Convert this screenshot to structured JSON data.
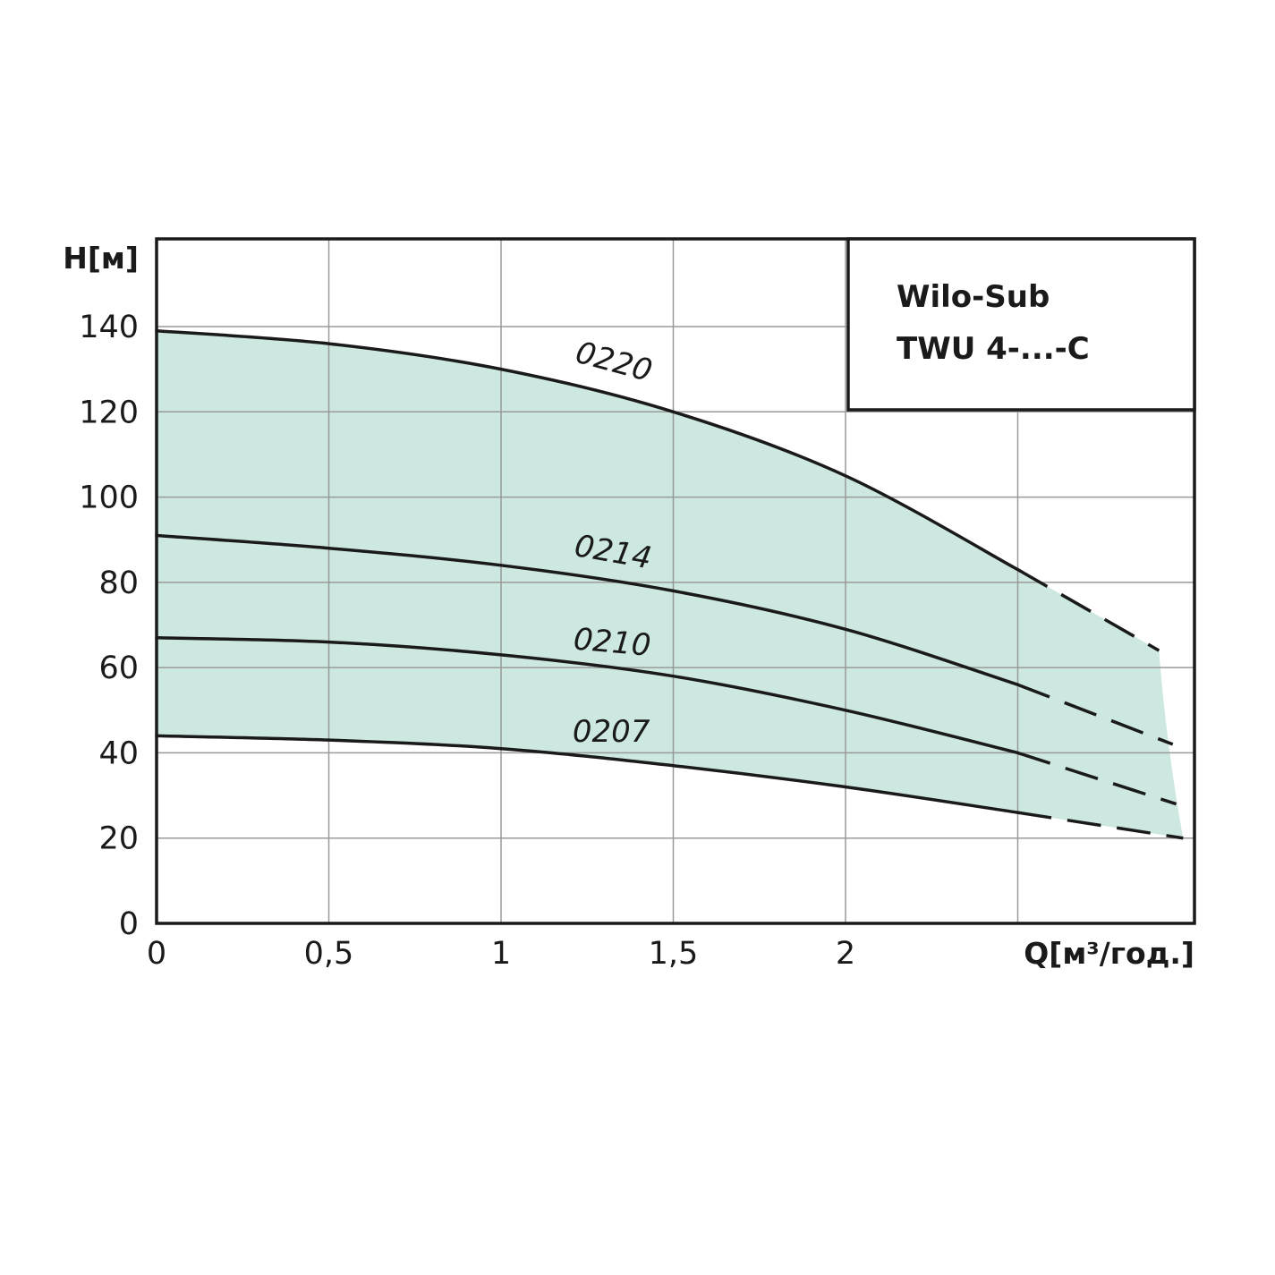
{
  "chart_data": {
    "type": "line",
    "xlabel": "Q[м³/год.]",
    "ylabel": "H[м]",
    "xlim": [
      0,
      3
    ],
    "ylim": [
      0,
      140
    ],
    "x_ticks": [
      0,
      0.5,
      1,
      1.5,
      2,
      2.5
    ],
    "x_tick_labels": [
      "0",
      "0,5",
      "1",
      "1,5",
      "2",
      ""
    ],
    "y_ticks": [
      0,
      20,
      40,
      60,
      80,
      100,
      120,
      140
    ],
    "y_tick_labels": [
      "0",
      "20",
      "40",
      "60",
      "80",
      "100",
      "120",
      "140"
    ],
    "grid": true,
    "fill_color": "#cde8e1",
    "line_color": "#1a1a1a",
    "legend_box": {
      "lines": [
        "Wilo-Sub",
        "TWU 4-...-C"
      ],
      "placement": "top-right"
    },
    "series": [
      {
        "name": "0220",
        "x": [
          0,
          0.5,
          1.0,
          1.5,
          2.0,
          2.5
        ],
        "y": [
          139,
          136,
          130,
          120,
          105,
          83
        ],
        "dashed_x": [
          2.5,
          2.91
        ],
        "dashed_y": [
          83,
          64
        ]
      },
      {
        "name": "0214",
        "x": [
          0,
          0.5,
          1.0,
          1.5,
          2.0,
          2.5
        ],
        "y": [
          91,
          88,
          84,
          78,
          69,
          56
        ],
        "dashed_x": [
          2.5,
          2.95
        ],
        "dashed_y": [
          56,
          42
        ]
      },
      {
        "name": "0210",
        "x": [
          0,
          0.5,
          1.0,
          1.5,
          2.0,
          2.5
        ],
        "y": [
          67,
          66,
          63,
          58,
          50,
          40
        ],
        "dashed_x": [
          2.5,
          2.96
        ],
        "dashed_y": [
          40,
          28
        ]
      },
      {
        "name": "0207",
        "x": [
          0,
          0.5,
          1.0,
          1.5,
          2.0,
          2.5
        ],
        "y": [
          44,
          43,
          41,
          37,
          32,
          26
        ],
        "dashed_x": [
          2.5,
          2.98
        ],
        "dashed_y": [
          26,
          20
        ]
      }
    ]
  }
}
